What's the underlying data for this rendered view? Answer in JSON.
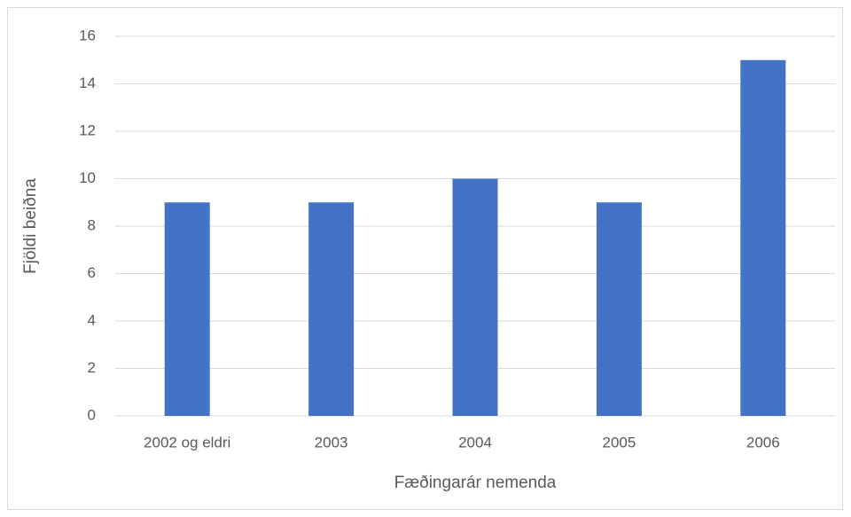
{
  "chart_data": {
    "type": "bar",
    "x_label": "Fæðingarár nemenda",
    "y_label": "Fjöldi beiðna",
    "categories": [
      "2002 og eldri",
      "2003",
      "2004",
      "2005",
      "2006"
    ],
    "values": [
      9,
      9,
      10,
      9,
      15
    ],
    "color": "#4472c4",
    "ylim": [
      0,
      16
    ],
    "yticks": [
      0,
      2,
      4,
      6,
      8,
      10,
      12,
      14,
      16
    ],
    "grid": true
  }
}
